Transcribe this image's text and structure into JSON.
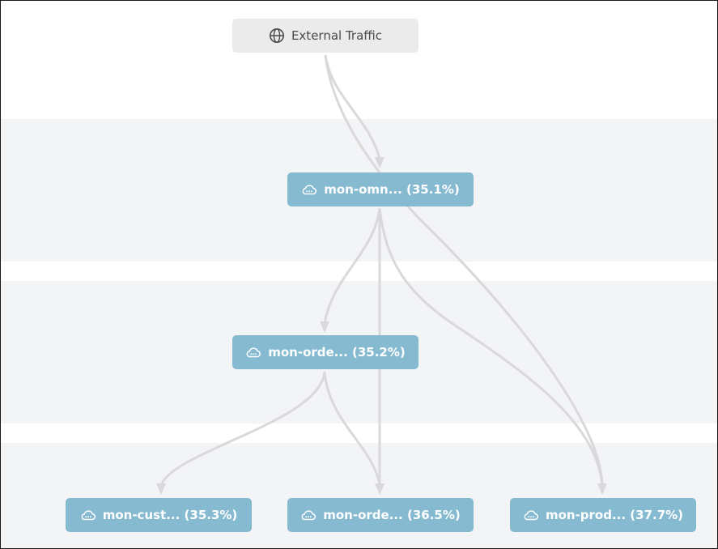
{
  "colors": {
    "external_node_bg": "#ebebeb",
    "service_node_bg": "#86bad0",
    "edge": "#d9d9db",
    "band": "#f3f4f6"
  },
  "nodes": {
    "external": {
      "label": "External Traffic",
      "icon": "globe-icon"
    },
    "omni": {
      "label": "mon-omn... (35.1%)",
      "icon": "cloud-icon"
    },
    "order_mid": {
      "label": "mon-orde... (35.2%)",
      "icon": "cloud-icon"
    },
    "customer": {
      "label": "mon-cust... (35.3%)",
      "icon": "cloud-icon"
    },
    "order_bottom": {
      "label": "mon-orde... (36.5%)",
      "icon": "cloud-icon"
    },
    "product": {
      "label": "mon-prod... (37.7%)",
      "icon": "cloud-icon"
    }
  }
}
